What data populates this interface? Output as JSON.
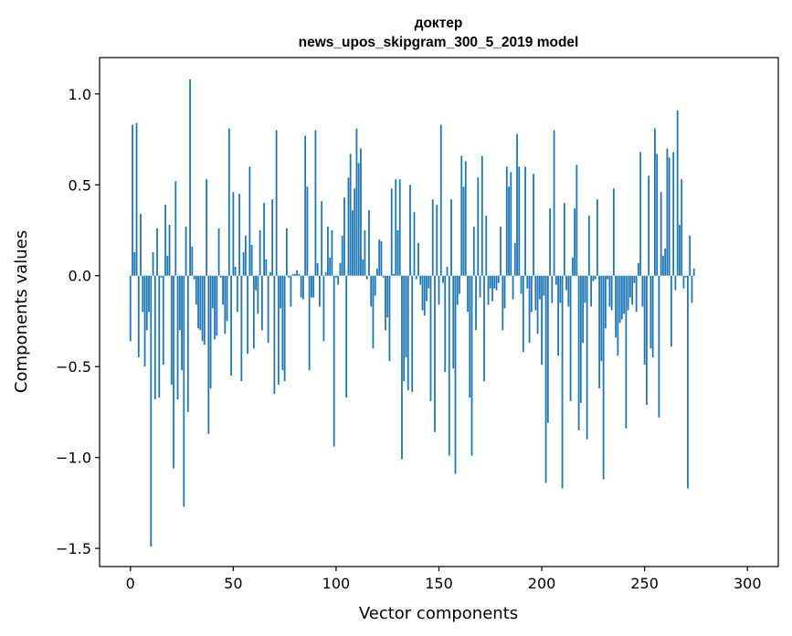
{
  "chart_data": {
    "type": "bar",
    "title_line1": "доктер",
    "title_line2": "news_upos_skipgram_300_5_2019 model",
    "xlabel": "Vector components",
    "ylabel": "Components values",
    "xlim": [
      -15,
      315
    ],
    "ylim": [
      -1.6,
      1.2
    ],
    "x_ticks": [
      0,
      50,
      100,
      150,
      200,
      250,
      300
    ],
    "x_tick_labels": [
      "0",
      "50",
      "100",
      "150",
      "200",
      "250",
      "300"
    ],
    "y_ticks": [
      -1.5,
      -1.0,
      -0.5,
      0.0,
      0.5,
      1.0
    ],
    "y_tick_labels": [
      "−1.5",
      "−1.0",
      "−0.5",
      "0.0",
      "0.5",
      "1.0"
    ],
    "bar_color": "#1f77b4",
    "grid": false,
    "values": [
      -0.36,
      0.83,
      0.13,
      0.84,
      -0.45,
      0.34,
      -0.2,
      -0.5,
      -0.3,
      -0.2,
      -1.49,
      0.13,
      -0.68,
      0.26,
      -0.67,
      -0.01,
      -0.49,
      0.39,
      0.11,
      0.28,
      -0.6,
      -1.06,
      0.52,
      -0.68,
      -0.3,
      -0.52,
      -1.27,
      0.27,
      -0.75,
      1.08,
      0.16,
      -0.02,
      -0.16,
      -0.29,
      -0.3,
      -0.36,
      -0.38,
      0.53,
      -0.87,
      -0.62,
      -0.18,
      -0.35,
      -0.33,
      0.26,
      -0.01,
      -0.16,
      -0.32,
      -0.25,
      0.81,
      -0.55,
      0.46,
      0.05,
      -0.2,
      0.45,
      -0.58,
      0.13,
      0.22,
      -0.43,
      0.6,
      0.17,
      -0.4,
      -0.08,
      -0.21,
      0.25,
      -0.3,
      0.4,
      0.09,
      -0.37,
      0.02,
      0.42,
      -0.65,
      0.8,
      -0.6,
      -0.18,
      -0.52,
      -0.58,
      0.26,
      -0.01,
      -0.17,
      0.01,
      0.01,
      0.03,
      0.01,
      -0.12,
      -0.13,
      0.77,
      0.49,
      -0.52,
      -0.12,
      -0.12,
      0.8,
      0.07,
      -0.17,
      0.41,
      -0.36,
      0.02,
      0.27,
      0.1,
      0.25,
      -0.94,
      -0.01,
      -0.05,
      0.07,
      0.22,
      0.43,
      -0.67,
      0.54,
      0.67,
      0.36,
      0.48,
      0.81,
      0.62,
      0.7,
      0.09,
      0.25,
      -0.02,
      0.36,
      -0.17,
      -0.4,
      -0.11,
      0.04,
      0.2,
      0.19,
      -0.01,
      -0.3,
      -0.23,
      -0.47,
      0.48,
      0.01,
      0.53,
      0.25,
      0.53,
      -1.01,
      -0.58,
      -0.45,
      -0.63,
      0.5,
      -0.64,
      0.35,
      -0.02,
      0.18,
      -0.05,
      -0.19,
      -0.22,
      -0.14,
      -0.07,
      -0.69,
      0.42,
      -0.86,
      0.39,
      -0.16,
      0.83,
      -0.04,
      -0.53,
      0.05,
      -0.99,
      0.42,
      -0.51,
      -1.09,
      -0.16,
      -0.1,
      0.66,
      0.49,
      0.63,
      -0.2,
      -0.67,
      -0.99,
      0.27,
      -0.3,
      0.54,
      -0.12,
      0.66,
      -0.58,
      0.33,
      -0.16,
      -0.07,
      -0.14,
      -0.07,
      -0.08,
      -0.04,
      0.27,
      -0.3,
      -0.18,
      0.6,
      0.49,
      0.57,
      -0.13,
      0.18,
      0.78,
      0.6,
      -0.1,
      -0.42,
      0.6,
      -0.07,
      -0.37,
      -0.2,
      0.56,
      -0.19,
      -0.32,
      -0.13,
      -0.49,
      -0.11,
      -1.14,
      -0.81,
      0.37,
      -0.15,
      0.8,
      -0.05,
      -0.44,
      -0.15,
      -1.17,
      0.4,
      -0.08,
      -0.17,
      -0.69,
      0.1,
      0.37,
      0.61,
      -0.85,
      -0.7,
      -0.37,
      -0.15,
      -0.9,
      0.33,
      -0.17,
      -0.03,
      -0.02,
      0.42,
      -0.62,
      -0.47,
      -1.12,
      -0.29,
      -0.02,
      -0.17,
      -0.19,
      0.48,
      -0.34,
      -0.44,
      -0.26,
      -0.24,
      -0.21,
      -0.84,
      -0.19,
      -0.12,
      -0.16,
      -0.04,
      -0.2,
      0.07,
      0.68,
      -0.17,
      -0.49,
      -0.71,
      0.55,
      -0.4,
      -0.45,
      0.81,
      0.67,
      -0.78,
      0.46,
      0.11,
      0.15,
      0.7,
      0.65,
      -0.39,
      0.68,
      -0.08,
      0.91,
      0.28,
      0.53,
      -0.07,
      -0.01,
      -1.17,
      0.22,
      -0.15,
      0.04
    ],
    "x_start": 0
  }
}
